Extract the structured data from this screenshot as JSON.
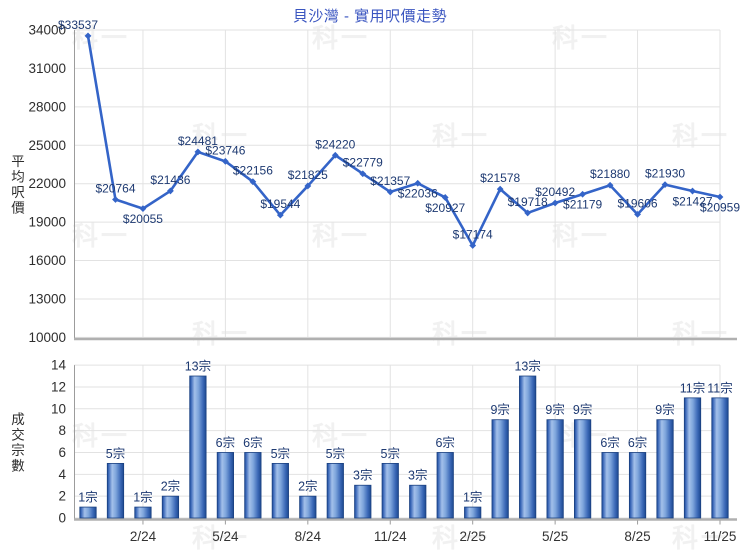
{
  "title": "貝沙灣 - 實用呎價走勢",
  "watermark_text": "科一",
  "colors": {
    "title": "#3A55C0",
    "line": "#3464C8",
    "data_label": "#1E3A72",
    "tick_label": "#2E2E2E",
    "x_label": "#333333",
    "grid": "#E2E2E2",
    "axis": "#9C9C9C",
    "axis_bottom": "#B0B0B0",
    "bar_dark": "#1E4C9A",
    "bar_mid": "#5585CC",
    "bar_light": "#A3C0EA",
    "bar_border": "#1A4080"
  },
  "chart_data": [
    {
      "type": "line",
      "title": "貝沙灣 - 實用呎價走勢",
      "ylabel": "平均呎價",
      "ylim": [
        10000,
        34000
      ],
      "yticks": [
        34000,
        31000,
        28000,
        25000,
        22000,
        19000,
        16000,
        13000,
        10000
      ],
      "grid": true,
      "legend": "none",
      "value_prefix": "$",
      "values": [
        33537,
        20764,
        20055,
        21436,
        24481,
        23746,
        22156,
        19544,
        21825,
        24220,
        22779,
        21357,
        22036,
        20927,
        17174,
        21578,
        19718,
        20492,
        21179,
        21880,
        19606,
        21930,
        21427,
        20959
      ],
      "point_labels": [
        "$33537",
        "$20764",
        "$20055",
        "$21436",
        "$24481",
        "$23746",
        "$22156",
        "$19544",
        "$21825",
        "$24220",
        "$22779",
        "$21357",
        "$22036",
        "$20927",
        "$17174",
        "$21578",
        "$19718",
        "$20492",
        "$21179",
        "$21880",
        "$19606",
        "$21930",
        "$21427",
        "$20959"
      ],
      "label_positions": [
        "above",
        "above",
        "below",
        "above",
        "above",
        "above",
        "above",
        "above",
        "above",
        "above",
        "above",
        "above",
        "below",
        "below",
        "above",
        "above",
        "above",
        "above",
        "below",
        "above",
        "above",
        "above",
        "below",
        "below"
      ]
    },
    {
      "type": "bar",
      "ylabel": "成交宗數",
      "ylim": [
        0,
        14
      ],
      "yticks": [
        0,
        2,
        4,
        6,
        8,
        10,
        12,
        14
      ],
      "grid": true,
      "value_suffix": "宗",
      "values": [
        1,
        5,
        1,
        2,
        13,
        6,
        6,
        5,
        2,
        5,
        3,
        5,
        3,
        6,
        1,
        9,
        13,
        9,
        9,
        6,
        6,
        9,
        11,
        11
      ],
      "bar_labels": [
        "1宗",
        "5宗",
        "1宗",
        "2宗",
        "13宗",
        "6宗",
        "6宗",
        "5宗",
        "2宗",
        "5宗",
        "3宗",
        "5宗",
        "3宗",
        "6宗",
        "1宗",
        "9宗",
        "13宗",
        "9宗",
        "9宗",
        "6宗",
        "6宗",
        "9宗",
        "11宗",
        "11宗"
      ],
      "x_tick_labels": [
        "2/24",
        "5/24",
        "8/24",
        "11/24",
        "2/25",
        "5/25",
        "8/25",
        "11/25"
      ],
      "x_tick_indices": [
        2,
        5,
        8,
        11,
        14,
        17,
        20,
        23
      ]
    }
  ]
}
